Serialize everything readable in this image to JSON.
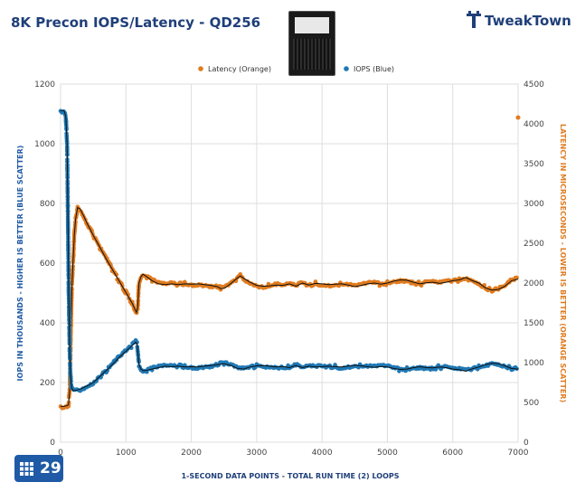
{
  "header": {
    "title": "8K Precon IOPS/Latency - QD256",
    "brand": "TweakTown",
    "badge": "29"
  },
  "chart_data": {
    "type": "scatter",
    "title": "8K Precon IOPS/Latency - QD256",
    "xlabel": "1-SECOND  DATA POINTS - TOTAL RUN TIME (2) LOOPS",
    "ylabel_left": "IOPS IN THOUSANDS - HIGHER IS BETTER (BLUE SCATTER)",
    "ylabel_right": "LATENCY IN MICROSECONDS - LOWER IS BETTER (ORANGE SCATTER)",
    "xlim": [
      0,
      7000
    ],
    "ylim_left": [
      0,
      1200
    ],
    "ylim_right": [
      0,
      4500
    ],
    "x_ticks": [
      0,
      1000,
      2000,
      3000,
      4000,
      5000,
      6000,
      7000
    ],
    "y_left_ticks": [
      0,
      200,
      400,
      600,
      800,
      1000,
      1200
    ],
    "y_right_ticks": [
      0,
      500,
      1000,
      1500,
      2000,
      2500,
      3000,
      3500,
      4000,
      4500
    ],
    "grid": true,
    "legend": "top",
    "series": [
      {
        "name": "Latency (Orange)",
        "axis": "right",
        "color": "#e07b1f",
        "points": [
          [
            0,
            450
          ],
          [
            50,
            450
          ],
          [
            100,
            460
          ],
          [
            120,
            470
          ],
          [
            140,
            650
          ],
          [
            155,
            1300
          ],
          [
            165,
            1700
          ],
          [
            175,
            2000
          ],
          [
            190,
            2250
          ],
          [
            210,
            2600
          ],
          [
            230,
            2800
          ],
          [
            260,
            2950
          ],
          [
            300,
            2930
          ],
          [
            350,
            2850
          ],
          [
            400,
            2760
          ],
          [
            500,
            2600
          ],
          [
            600,
            2450
          ],
          [
            700,
            2300
          ],
          [
            800,
            2160
          ],
          [
            900,
            2020
          ],
          [
            1000,
            1880
          ],
          [
            1100,
            1740
          ],
          [
            1160,
            1630
          ],
          [
            1180,
            1700
          ],
          [
            1200,
            2000
          ],
          [
            1230,
            2080
          ],
          [
            1260,
            2110
          ],
          [
            1300,
            2090
          ],
          [
            1400,
            2030
          ],
          [
            1500,
            1990
          ],
          [
            1600,
            1980
          ],
          [
            1700,
            1990
          ],
          [
            1800,
            1980
          ],
          [
            1900,
            1990
          ],
          [
            2000,
            1985
          ],
          [
            2100,
            1990
          ],
          [
            2200,
            1980
          ],
          [
            2300,
            1970
          ],
          [
            2400,
            1955
          ],
          [
            2450,
            1930
          ],
          [
            2500,
            1935
          ],
          [
            2550,
            1960
          ],
          [
            2600,
            1990
          ],
          [
            2700,
            2060
          ],
          [
            2750,
            2090
          ],
          [
            2800,
            2060
          ],
          [
            2900,
            2010
          ],
          [
            3000,
            1970
          ],
          [
            3100,
            1960
          ],
          [
            3200,
            1965
          ],
          [
            3300,
            1975
          ],
          [
            3400,
            1970
          ],
          [
            3500,
            1990
          ],
          [
            3600,
            1960
          ],
          [
            3700,
            2000
          ],
          [
            3800,
            1975
          ],
          [
            3900,
            1995
          ],
          [
            4000,
            1990
          ],
          [
            4100,
            1980
          ],
          [
            4200,
            1985
          ],
          [
            4300,
            1990
          ],
          [
            4400,
            1975
          ],
          [
            4500,
            1955
          ],
          [
            4600,
            1970
          ],
          [
            4700,
            1990
          ],
          [
            4800,
            2000
          ],
          [
            4900,
            1985
          ],
          [
            5000,
            2000
          ],
          [
            5100,
            2025
          ],
          [
            5200,
            2040
          ],
          [
            5300,
            2035
          ],
          [
            5400,
            2010
          ],
          [
            5500,
            1990
          ],
          [
            5600,
            2005
          ],
          [
            5700,
            2010
          ],
          [
            5800,
            1995
          ],
          [
            5900,
            2010
          ],
          [
            6000,
            2030
          ],
          [
            6100,
            2040
          ],
          [
            6200,
            2070
          ],
          [
            6300,
            2030
          ],
          [
            6400,
            2000
          ],
          [
            6500,
            1940
          ],
          [
            6600,
            1910
          ],
          [
            6700,
            1920
          ],
          [
            6800,
            1960
          ],
          [
            6900,
            2030
          ],
          [
            7000,
            2050
          ]
        ],
        "outlier": [
          7000,
          4080
        ]
      },
      {
        "name": "IOPS (Blue)",
        "axis": "left",
        "color": "#1f78b4",
        "points": [
          [
            0,
            1110
          ],
          [
            40,
            1112
          ],
          [
            60,
            1108
          ],
          [
            80,
            1090
          ],
          [
            100,
            1000
          ],
          [
            110,
            800
          ],
          [
            125,
            500
          ],
          [
            140,
            300
          ],
          [
            150,
            230
          ],
          [
            170,
            180
          ],
          [
            200,
            172
          ],
          [
            250,
            175
          ],
          [
            300,
            178
          ],
          [
            400,
            188
          ],
          [
            500,
            200
          ],
          [
            600,
            220
          ],
          [
            700,
            240
          ],
          [
            800,
            262
          ],
          [
            900,
            285
          ],
          [
            1000,
            305
          ],
          [
            1100,
            325
          ],
          [
            1150,
            335
          ],
          [
            1170,
            330
          ],
          [
            1180,
            310
          ],
          [
            1200,
            260
          ],
          [
            1230,
            245
          ],
          [
            1260,
            240
          ],
          [
            1300,
            240
          ],
          [
            1400,
            245
          ],
          [
            1500,
            250
          ],
          [
            1600,
            255
          ],
          [
            1700,
            253
          ],
          [
            1800,
            255
          ],
          [
            1900,
            252
          ],
          [
            2000,
            253
          ],
          [
            2100,
            252
          ],
          [
            2200,
            255
          ],
          [
            2300,
            257
          ],
          [
            2400,
            260
          ],
          [
            2500,
            263
          ],
          [
            2600,
            258
          ],
          [
            2700,
            248
          ],
          [
            2800,
            245
          ],
          [
            2900,
            252
          ],
          [
            3000,
            256
          ],
          [
            3100,
            257
          ],
          [
            3200,
            255
          ],
          [
            3300,
            252
          ],
          [
            3400,
            254
          ],
          [
            3500,
            250
          ],
          [
            3600,
            257
          ],
          [
            3700,
            250
          ],
          [
            3800,
            255
          ],
          [
            3900,
            252
          ],
          [
            4000,
            253
          ],
          [
            4100,
            255
          ],
          [
            4200,
            253
          ],
          [
            4300,
            252
          ],
          [
            4400,
            255
          ],
          [
            4500,
            258
          ],
          [
            4600,
            256
          ],
          [
            4700,
            253
          ],
          [
            4800,
            251
          ],
          [
            4900,
            254
          ],
          [
            5000,
            252
          ],
          [
            5100,
            247
          ],
          [
            5200,
            244
          ],
          [
            5300,
            245
          ],
          [
            5400,
            250
          ],
          [
            5500,
            253
          ],
          [
            5600,
            250
          ],
          [
            5700,
            249
          ],
          [
            5800,
            252
          ],
          [
            5900,
            250
          ],
          [
            6000,
            245
          ],
          [
            6100,
            243
          ],
          [
            6200,
            238
          ],
          [
            6300,
            246
          ],
          [
            6400,
            252
          ],
          [
            6500,
            260
          ],
          [
            6600,
            265
          ],
          [
            6700,
            263
          ],
          [
            6800,
            256
          ],
          [
            6900,
            247
          ],
          [
            7000,
            245
          ]
        ]
      }
    ]
  }
}
